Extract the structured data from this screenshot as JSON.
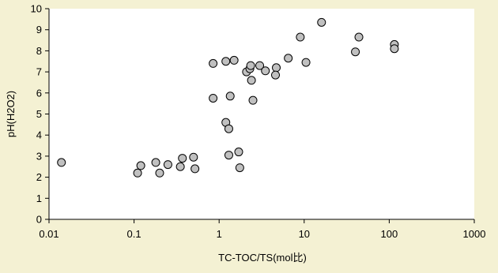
{
  "chart_data": {
    "type": "scatter",
    "title": "",
    "xlabel": "TC-TOC/TS(mol比)",
    "ylabel": "pH(H2O2)",
    "xscale": "log",
    "xlim": [
      0.01,
      1000
    ],
    "ylim": [
      0,
      10
    ],
    "xticks": [
      "0.01",
      "0.1",
      "1",
      "10",
      "100",
      "1000"
    ],
    "yticks": [
      "0",
      "1",
      "2",
      "3",
      "4",
      "5",
      "6",
      "7",
      "8",
      "9",
      "10"
    ],
    "grid": false,
    "legend": "none",
    "marker_fill": "#c0c0c0",
    "marker_stroke": "#000000",
    "background": "#f4f1d3",
    "plot_background": "#ffffff",
    "points": [
      {
        "x": 0.014,
        "y": 2.7
      },
      {
        "x": 0.11,
        "y": 2.2
      },
      {
        "x": 0.12,
        "y": 2.55
      },
      {
        "x": 0.18,
        "y": 2.7
      },
      {
        "x": 0.2,
        "y": 2.2
      },
      {
        "x": 0.25,
        "y": 2.6
      },
      {
        "x": 0.35,
        "y": 2.5
      },
      {
        "x": 0.37,
        "y": 2.9
      },
      {
        "x": 0.5,
        "y": 2.95
      },
      {
        "x": 0.52,
        "y": 2.4
      },
      {
        "x": 0.85,
        "y": 7.4
      },
      {
        "x": 0.85,
        "y": 5.75
      },
      {
        "x": 1.2,
        "y": 7.5
      },
      {
        "x": 1.2,
        "y": 4.6
      },
      {
        "x": 1.3,
        "y": 4.3
      },
      {
        "x": 1.35,
        "y": 5.85
      },
      {
        "x": 1.3,
        "y": 3.05
      },
      {
        "x": 1.5,
        "y": 7.55
      },
      {
        "x": 1.7,
        "y": 3.2
      },
      {
        "x": 1.75,
        "y": 2.45
      },
      {
        "x": 2.1,
        "y": 7.0
      },
      {
        "x": 2.3,
        "y": 7.15
      },
      {
        "x": 2.35,
        "y": 7.3
      },
      {
        "x": 2.4,
        "y": 6.6
      },
      {
        "x": 2.5,
        "y": 5.65
      },
      {
        "x": 3.0,
        "y": 7.3
      },
      {
        "x": 3.5,
        "y": 7.05
      },
      {
        "x": 4.7,
        "y": 7.2
      },
      {
        "x": 4.6,
        "y": 6.85
      },
      {
        "x": 6.5,
        "y": 7.65
      },
      {
        "x": 9.0,
        "y": 8.65
      },
      {
        "x": 10.5,
        "y": 7.45
      },
      {
        "x": 16,
        "y": 9.35
      },
      {
        "x": 40,
        "y": 7.95
      },
      {
        "x": 44,
        "y": 8.65
      },
      {
        "x": 115,
        "y": 8.3
      },
      {
        "x": 115,
        "y": 8.1
      }
    ]
  }
}
